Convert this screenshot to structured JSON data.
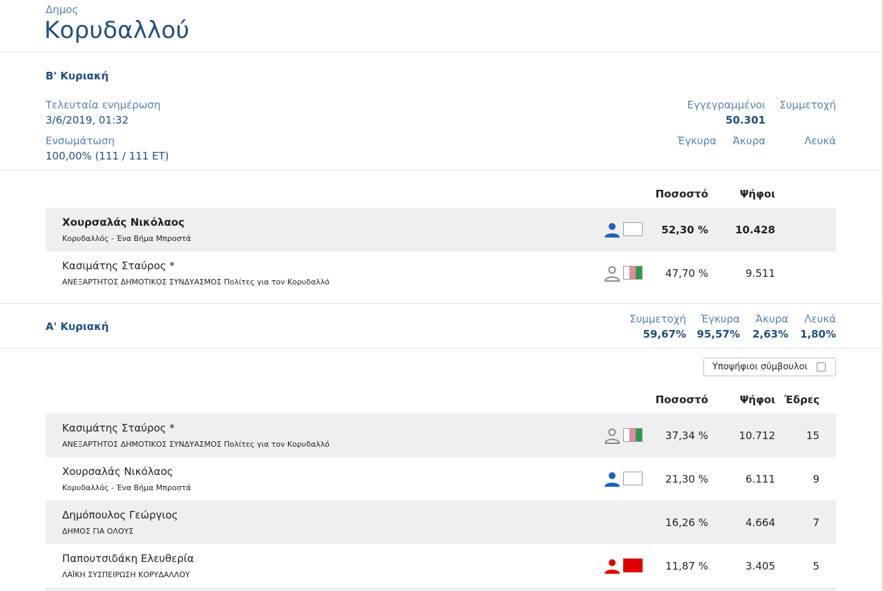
{
  "header": {
    "label": "Δημος",
    "name": "Κορυδαλλού"
  },
  "round_b": {
    "title": "Β' Κυριακή",
    "last_update_label": "Τελευταία ενημέρωση",
    "last_update_value": "3/6/2019, 01:32",
    "integration_label": "Ενσωμάτωση",
    "integration_value": "100,00% (111 / 111 ΕΤ)",
    "registered_label": "Εγγεγραμμένοι",
    "registered_value": "50.301",
    "turnout_label": "Συμμετοχή",
    "valid_label": "Έγκυρα",
    "invalid_label": "Άκυρα",
    "blank_label": "Λευκά",
    "col_pct": "Ποσοστό",
    "col_votes": "Ψήφοι",
    "candidates": [
      {
        "name": "Χουρσαλάς Νικόλαος",
        "party": "Κορυδαλλός - Ένα Βήμα Μπροστά",
        "pct": "52,30 %",
        "votes": "10.428",
        "icon": "person-filled-icon",
        "icon_color": "#1f5fbf"
      },
      {
        "name": "Κασιμάτης Σταύρος *",
        "party": "ΑΝΕΞΑΡΤΗΤΟΣ ΔΗΜΟΤΙΚΟΣ ΣΥΝΔΥΑΣΜΟΣ Πολίτες για τον Κορυδαλλό",
        "pct": "47,70 %",
        "votes": "9.511",
        "icon": "person-outline-icon",
        "icon_color": "#8a8a8a"
      }
    ]
  },
  "round_a": {
    "title": "Α' Κυριακή",
    "turnout_label": "Συμμετοχή",
    "turnout_value": "59,67%",
    "valid_label": "Έγκυρα",
    "valid_value": "95,57%",
    "invalid_label": "Άκυρα",
    "invalid_value": "2,63%",
    "blank_label": "Λευκά",
    "blank_value": "1,80%",
    "toggle_label": "Υποψήφιοι σύμβουλοι",
    "col_pct": "Ποσοστό",
    "col_votes": "Ψήφοι",
    "col_seats": "Έδρες",
    "candidates": [
      {
        "name": "Κασιμάτης Σταύρος *",
        "party": "ΑΝΕΞΑΡΤΗΤΟΣ ΔΗΜΟΤΙΚΟΣ ΣΥΝΔΥΑΣΜΟΣ Πολίτες για τον Κορυδαλλό",
        "pct": "37,34 %",
        "votes": "10.712",
        "seats": "15",
        "icon": "person-outline-icon",
        "icon_color": "#8a8a8a"
      },
      {
        "name": "Χουρσαλάς Νικόλαος",
        "party": "Κορυδαλλός - Ένα Βήμα Μπροστά",
        "pct": "21,30 %",
        "votes": "6.111",
        "seats": "9",
        "icon": "person-filled-icon",
        "icon_color": "#1f5fbf"
      },
      {
        "name": "Δημόπουλος Γεώργιος",
        "party": "ΔΗΜΟΣ ΓΙΑ ΟΛΟΥΣ",
        "pct": "16,26 %",
        "votes": "4.664",
        "seats": "7"
      },
      {
        "name": "Παπουτσιδάκη Ελευθερία",
        "party": "ΛΑΪΚΗ ΣΥΣΠΕΙΡΩΣΗ ΚΟΡΥΔΑΛΛΟΥ",
        "pct": "11,87 %",
        "votes": "3.405",
        "seats": "5",
        "icon": "person-filled-icon",
        "icon_color": "#e00000"
      }
    ]
  },
  "colors": {
    "primary": "#1f4e80",
    "secondary": "#5a82ad",
    "row_shade": "#efefef",
    "flag_pink": "#e68aa0",
    "flag_green": "#2a9a4a",
    "flag_red": "#e00000"
  }
}
